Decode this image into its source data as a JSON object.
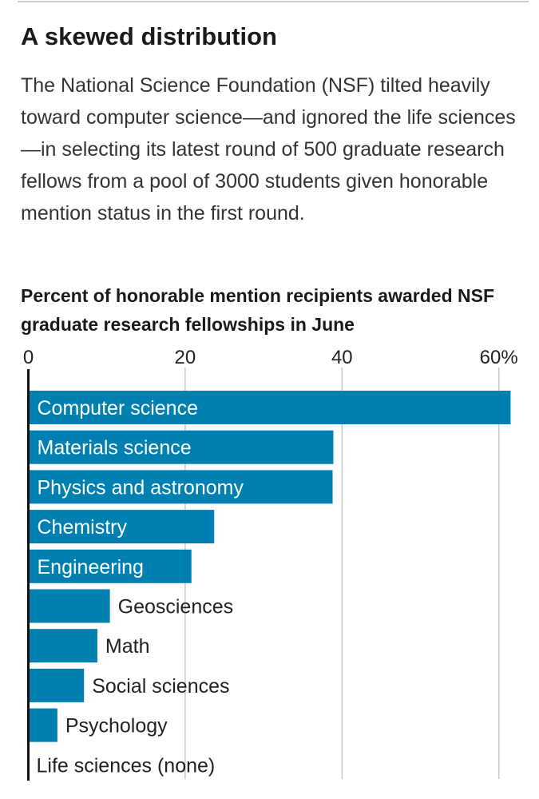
{
  "title": "A skewed distribution",
  "description": "The National Science Foundation (NSF) tilted heavily toward computer science—and ignored the life sciences—in selecting its latest round of 500 graduate research fellows from a pool of 3000 students given honorable mention status in the first round.",
  "chart_data": {
    "type": "bar",
    "orientation": "horizontal",
    "title": "Percent of honorable mention recipients awarded NSF graduate research fellowships in June",
    "categories": [
      "Computer science",
      "Materials science",
      "Physics and astronomy",
      "Chemistry",
      "Engineering",
      "Geosciences",
      "Math",
      "Social sciences",
      "Psychology",
      "Life sciences (none)"
    ],
    "values": [
      61.5,
      38.9,
      38.8,
      23.7,
      20.8,
      10.4,
      8.8,
      7.1,
      3.7,
      0
    ],
    "xlim": [
      0,
      62
    ],
    "ticks": [
      0,
      20,
      40,
      60
    ],
    "tick_labels": [
      "0",
      "20",
      "40",
      "60%"
    ],
    "grid": true,
    "bar_color": "#0080b0"
  }
}
